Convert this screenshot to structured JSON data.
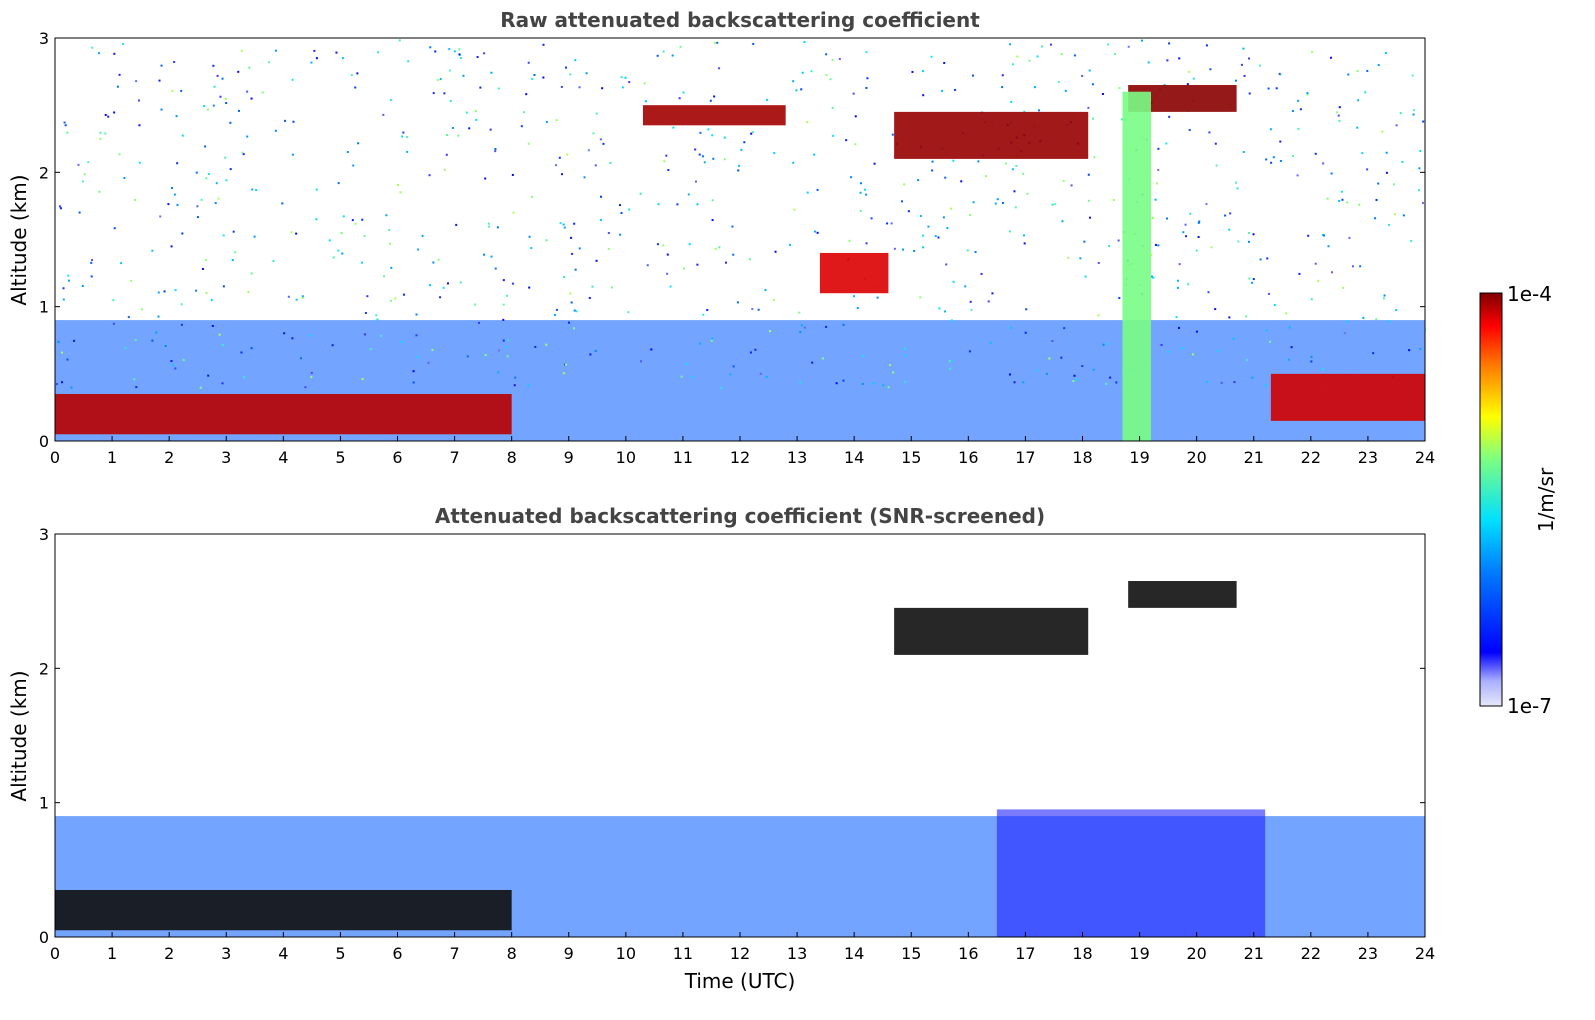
{
  "chart_data": [
    {
      "type": "heatmap",
      "title": "Raw attenuated backscattering coefficient",
      "xlabel": "",
      "ylabel": "Altitude (km)",
      "xlim": [
        0,
        24
      ],
      "ylim": [
        0,
        3
      ],
      "xticks": [
        "0",
        "1",
        "2",
        "3",
        "4",
        "5",
        "6",
        "7",
        "8",
        "9",
        "10",
        "11",
        "12",
        "13",
        "14",
        "15",
        "16",
        "17",
        "18",
        "19",
        "20",
        "21",
        "22",
        "23",
        "24"
      ],
      "yticks": [
        "0",
        "1",
        "2",
        "3"
      ],
      "features": [
        {
          "label": "boundary layer aerosol (0-8 UTC)",
          "t": [
            0,
            8
          ],
          "alt": [
            0.05,
            0.35
          ],
          "level": 0.95
        },
        {
          "label": "cloud layer",
          "t": [
            10.3,
            12.8
          ],
          "alt": [
            2.35,
            2.5
          ],
          "level": 0.97
        },
        {
          "label": "cloud layer",
          "t": [
            14.7,
            18.1
          ],
          "alt": [
            2.1,
            2.45
          ],
          "level": 0.98
        },
        {
          "label": "cloud layer",
          "t": [
            18.8,
            20.7
          ],
          "alt": [
            2.45,
            2.65
          ],
          "level": 0.99
        },
        {
          "label": "precipitation shaft",
          "t": [
            18.7,
            19.2
          ],
          "alt": [
            0.0,
            2.6
          ],
          "level": 0.55
        },
        {
          "label": "mid-level cloud",
          "t": [
            13.4,
            14.6
          ],
          "alt": [
            1.1,
            1.4
          ],
          "level": 0.92
        },
        {
          "label": "boundary layer aerosol (21-24 UTC)",
          "t": [
            21.3,
            24
          ],
          "alt": [
            0.15,
            0.5
          ],
          "level": 0.93
        }
      ]
    },
    {
      "type": "heatmap",
      "title": "Attenuated backscattering coefficient (SNR-screened)",
      "xlabel": "Time (UTC)",
      "ylabel": "Altitude (km)",
      "xlim": [
        0,
        24
      ],
      "ylim": [
        0,
        3
      ],
      "xticks": [
        "0",
        "1",
        "2",
        "3",
        "4",
        "5",
        "6",
        "7",
        "8",
        "9",
        "10",
        "11",
        "12",
        "13",
        "14",
        "15",
        "16",
        "17",
        "18",
        "19",
        "20",
        "21",
        "22",
        "23",
        "24"
      ],
      "yticks": [
        "0",
        "1",
        "2",
        "3"
      ],
      "features": [
        {
          "label": "boundary layer aerosol (0-8 UTC)",
          "t": [
            0,
            8
          ],
          "alt": [
            0.05,
            0.35
          ],
          "level": 0.95
        },
        {
          "label": "cloud layer",
          "t": [
            14.7,
            18.1
          ],
          "alt": [
            2.1,
            2.45
          ],
          "level": 0.98
        },
        {
          "label": "cloud layer",
          "t": [
            18.8,
            20.7
          ],
          "alt": [
            2.45,
            2.65
          ],
          "level": 0.99
        },
        {
          "label": "screened region above boundary layer",
          "t": [
            16.5,
            21.2
          ],
          "alt": [
            0.0,
            0.95
          ],
          "level": 0.2
        }
      ]
    }
  ],
  "colorbar": {
    "label": "1/m/sr",
    "max_label": "1e-4",
    "min_label": "1e-7",
    "colormap": "jet",
    "colors": [
      "#e8e8f8",
      "#aab0ff",
      "#0000ff",
      "#0080ff",
      "#00e0ff",
      "#7fff7f",
      "#ffff00",
      "#ff8000",
      "#ff0000",
      "#800000"
    ]
  }
}
